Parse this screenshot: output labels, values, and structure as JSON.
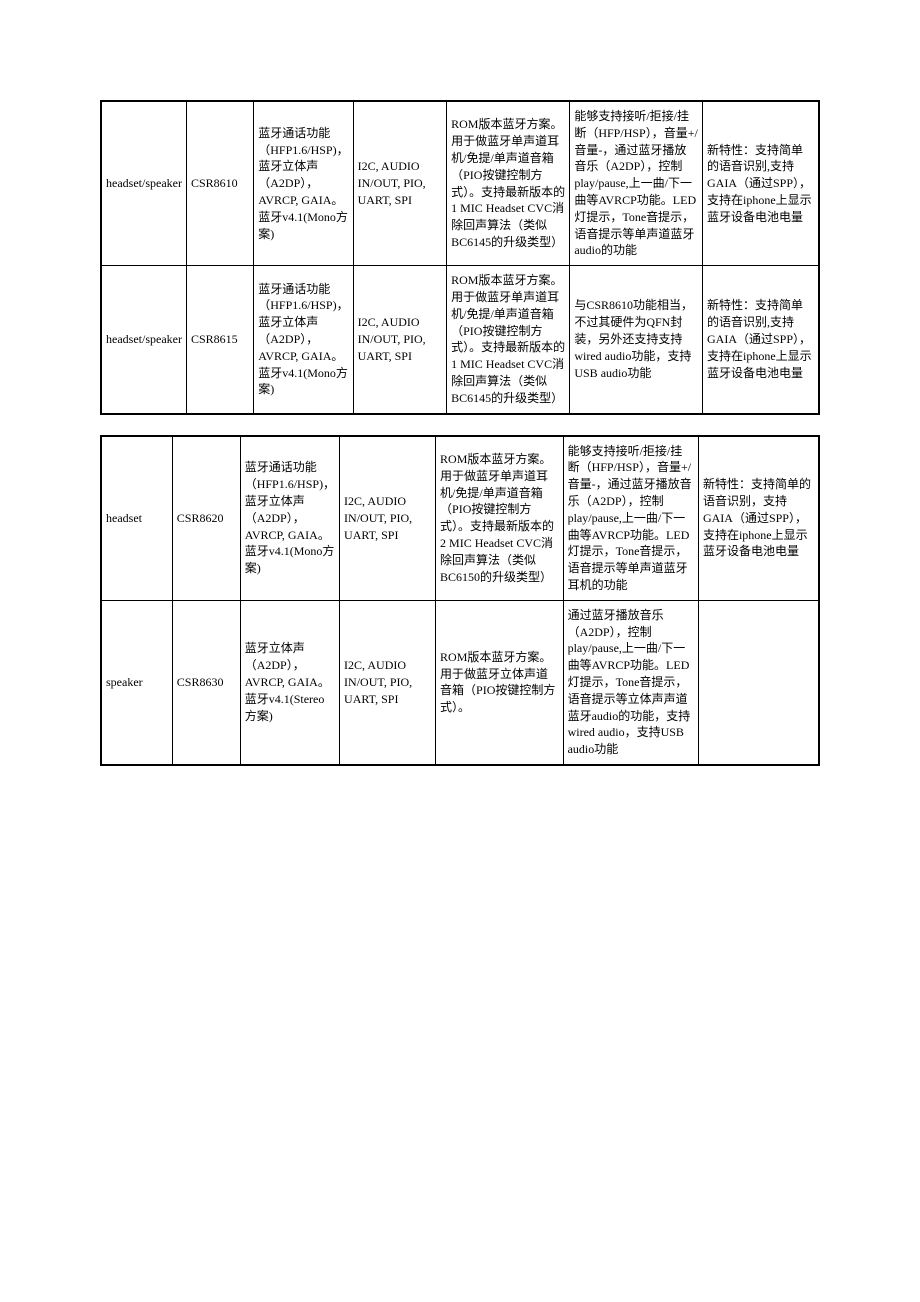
{
  "tables": [
    {
      "rows": [
        {
          "c1": "headset/speaker",
          "c2": "CSR8610",
          "c3": "蓝牙通话功能（HFP1.6/HSP)，蓝牙立体声（A2DP），AVRCP, GAIA。蓝牙v4.1(Mono方案)",
          "c4": "I2C, AUDIO IN/OUT, PIO, UART, SPI",
          "c5": "ROM版本蓝牙方案。用于做蓝牙单声道耳机/免提/单声道音箱（PIO按键控制方式）。支持最新版本的1 MIC Headset CVC消除回声算法（类似BC6145的升级类型）",
          "c6": "能够支持接听/拒接/挂断（HFP/HSP），音量+/音量-，通过蓝牙播放音乐（A2DP），控制play/pause,上一曲/下一曲等AVRCP功能。LED灯提示，Tone音提示，语音提示等单声道蓝牙audio的功能",
          "c7": "新特性：支持简单的语音识别,支持GAIA（通过SPP），支持在iphone上显示蓝牙设备电池电量"
        },
        {
          "c1": "headset/speaker",
          "c2": "CSR8615",
          "c3": "蓝牙通话功能（HFP1.6/HSP)，蓝牙立体声（A2DP），AVRCP, GAIA。蓝牙v4.1(Mono方案)",
          "c4": "I2C, AUDIO IN/OUT, PIO, UART, SPI",
          "c5": "ROM版本蓝牙方案。用于做蓝牙单声道耳机/免提/单声道音箱（PIO按键控制方式）。支持最新版本的1 MIC Headset CVC消除回声算法（类似BC6145的升级类型）",
          "c6": "与CSR8610功能相当，不过其硬件为QFN封装，另外还支持支持wired audio功能，支持USB audio功能",
          "c7": "新特性：支持简单的语音识别,支持GAIA（通过SPP），支持在iphone上显示蓝牙设备电池电量"
        }
      ]
    },
    {
      "rows": [
        {
          "c1": "headset",
          "c2": "CSR8620",
          "c3": "蓝牙通话功能（HFP1.6/HSP)，蓝牙立体声（A2DP），AVRCP, GAIA。蓝牙v4.1(Mono方案)",
          "c4": "I2C, AUDIO IN/OUT, PIO, UART, SPI",
          "c5": "ROM版本蓝牙方案。用于做蓝牙单声道耳机/免提/单声道音箱（PIO按键控制方式）。支持最新版本的2 MIC Headset CVC消除回声算法（类似BC6150的升级类型）",
          "c6": "能够支持接听/拒接/挂断（HFP/HSP），音量+/音量-，通过蓝牙播放音乐（A2DP），控制play/pause,上一曲/下一曲等AVRCP功能。LED灯提示，Tone音提示，语音提示等单声道蓝牙耳机的功能",
          "c7": "新特性：支持简单的语音识别，支持GAIA（通过SPP），支持在iphone上显示蓝牙设备电池电量"
        },
        {
          "c1": "speaker",
          "c2": "CSR8630",
          "c3": "蓝牙立体声（A2DP），AVRCP, GAIA。蓝牙v4.1(Stereo方案)",
          "c4": "I2C, AUDIO IN/OUT, PIO, UART, SPI",
          "c5": "ROM版本蓝牙方案。用于做蓝牙立体声道音箱（PIO按键控制方式）。",
          "c6": "通过蓝牙播放音乐（A2DP），控制play/pause,上一曲/下一曲等AVRCP功能。LED灯提示，Tone音提示，语音提示等立体声声道蓝牙audio的功能，支持wired audio，支持USB audio功能",
          "c7": ""
        }
      ]
    }
  ],
  "styling": {
    "font_family": "SimSun",
    "font_size": 12,
    "border_color": "#000000",
    "background_color": "#ffffff",
    "text_color": "#000000",
    "column_widths": [
      "10%",
      "9.5%",
      "13%",
      "13.5%",
      "18%",
      "19%",
      "17%"
    ],
    "outer_border_width": 2,
    "inner_border_width": 1
  }
}
